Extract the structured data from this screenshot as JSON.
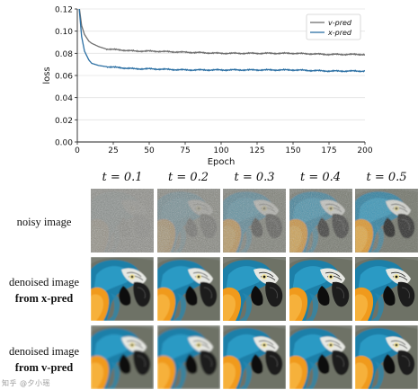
{
  "chart_data": {
    "type": "line",
    "xlabel": "Epoch",
    "ylabel": "loss",
    "xlim": [
      0,
      200
    ],
    "ylim": [
      0.0,
      0.12
    ],
    "x_ticks": [
      "0",
      "25",
      "50",
      "75",
      "100",
      "125",
      "150",
      "175",
      "200"
    ],
    "y_ticks": [
      "0.00",
      "0.02",
      "0.04",
      "0.06",
      "0.08",
      "0.10",
      "0.12"
    ],
    "grid": true,
    "legend_position": "top-right",
    "series": [
      {
        "name": "v-pred",
        "color": "#6f6f6f",
        "x": [
          1,
          3,
          5,
          8,
          10,
          15,
          20,
          30,
          40,
          50,
          75,
          100,
          125,
          150,
          175,
          200
        ],
        "y": [
          0.125,
          0.105,
          0.097,
          0.091,
          0.089,
          0.086,
          0.084,
          0.083,
          0.082,
          0.082,
          0.081,
          0.08,
          0.08,
          0.08,
          0.079,
          0.079
        ]
      },
      {
        "name": "x-pred",
        "color": "#2b6fa3",
        "x": [
          1,
          3,
          5,
          8,
          10,
          15,
          20,
          30,
          40,
          50,
          75,
          100,
          125,
          150,
          175,
          200
        ],
        "y": [
          0.125,
          0.095,
          0.082,
          0.074,
          0.071,
          0.069,
          0.068,
          0.067,
          0.066,
          0.066,
          0.065,
          0.065,
          0.065,
          0.065,
          0.064,
          0.064
        ]
      }
    ]
  },
  "grid_figure": {
    "columns": [
      "t = 0.1",
      "t = 0.2",
      "t = 0.3",
      "t = 0.4",
      "t = 0.5"
    ],
    "rows": [
      {
        "line1": "noisy image",
        "line2": ""
      },
      {
        "line1": "denoised image",
        "line2": "from x-pred"
      },
      {
        "line1": "denoised image",
        "line2": "from v-pred"
      }
    ],
    "noise_levels": [
      0.1,
      0.2,
      0.3,
      0.4,
      0.5
    ]
  },
  "watermark": "知乎 @夕小瑶"
}
